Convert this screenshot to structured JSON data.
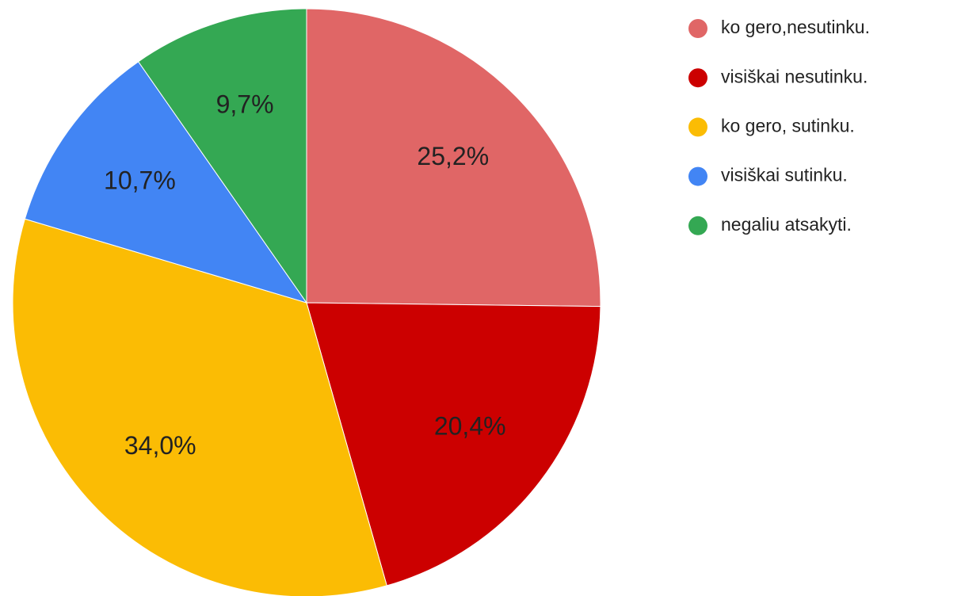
{
  "chart_data": {
    "type": "pie",
    "categories": [
      "ko gero,nesutinku.",
      "visiškai nesutinku.",
      "ko gero, sutinku.",
      "visiškai sutinku.",
      "negaliu atsakyti."
    ],
    "values": [
      25.2,
      20.4,
      34.0,
      10.7,
      9.7
    ],
    "value_labels": [
      "25,2%",
      "20,4%",
      "34,0%",
      "10,7%",
      "9,7%"
    ],
    "colors": [
      "#e06666",
      "#cc0000",
      "#fbbc04",
      "#4285f4",
      "#34a853"
    ],
    "legend": "right"
  }
}
